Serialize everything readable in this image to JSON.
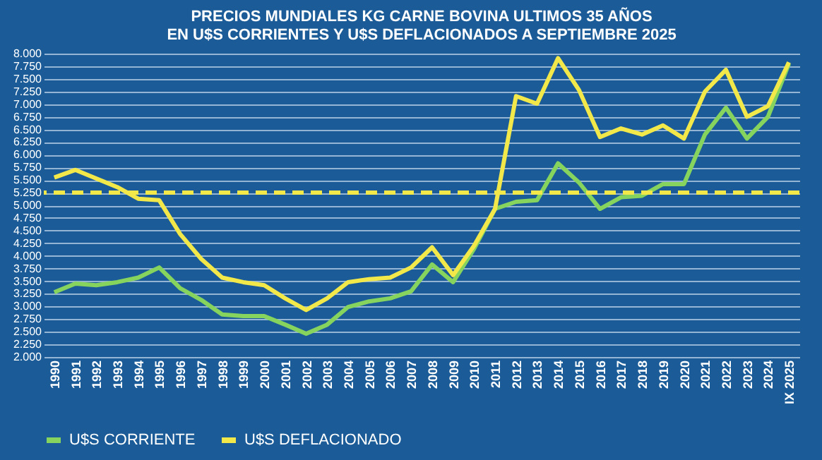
{
  "chart_data": {
    "type": "line",
    "title": [
      "PRECIOS MUNDIALES  KG CARNE BOVINA ULTIMOS 35 AÑOS",
      "EN U$S CORRIENTES Y U$S DEFLACIONADOS A SEPTIEMBRE  2025"
    ],
    "categories": [
      "1990",
      "1991",
      "1992",
      "1993",
      "1994",
      "1995",
      "1996",
      "1997",
      "1998",
      "1999",
      "2000",
      "2001",
      "2002",
      "2003",
      "2004",
      "2005",
      "2006",
      "2007",
      "2008",
      "2009",
      "2010",
      "2011",
      "2012",
      "2013",
      "2014",
      "2015",
      "2016",
      "2017",
      "2018",
      "2019",
      "2020",
      "2021",
      "2022",
      "2023",
      "2024",
      "IX 2025"
    ],
    "series": [
      {
        "name": "U$S CORRIENTE",
        "color": "#86d45e",
        "values": [
          3280,
          3450,
          3420,
          3480,
          3570,
          3770,
          3360,
          3130,
          2840,
          2810,
          2810,
          2640,
          2460,
          2640,
          2990,
          3100,
          3160,
          3300,
          3830,
          3480,
          4140,
          4930,
          5070,
          5100,
          5830,
          5450,
          4930,
          5160,
          5190,
          5420,
          5420,
          6400,
          6930,
          6320,
          6750,
          7800
        ]
      },
      {
        "name": "U$S DEFLACIONADO",
        "color": "#f2e84a",
        "values": [
          5550,
          5700,
          5530,
          5360,
          5130,
          5100,
          4430,
          3940,
          3570,
          3480,
          3420,
          3160,
          2930,
          3160,
          3480,
          3540,
          3570,
          3770,
          4170,
          3620,
          4200,
          4930,
          7160,
          7010,
          7910,
          7280,
          6350,
          6520,
          6400,
          6580,
          6320,
          7250,
          7680,
          6750,
          6960,
          7830
        ]
      }
    ],
    "ylim": [
      2000,
      8000
    ],
    "yticks": [
      {
        "value": 2000,
        "label": "2.000"
      },
      {
        "value": 2250,
        "label": "2.250"
      },
      {
        "value": 2500,
        "label": "2.500"
      },
      {
        "value": 2750,
        "label": "2.750"
      },
      {
        "value": 3000,
        "label": "3.000"
      },
      {
        "value": 3250,
        "label": "3.250"
      },
      {
        "value": 3500,
        "label": "3.500"
      },
      {
        "value": 3750,
        "label": "3.750"
      },
      {
        "value": 4000,
        "label": "4.000"
      },
      {
        "value": 4250,
        "label": "4.250"
      },
      {
        "value": 4500,
        "label": "4.500"
      },
      {
        "value": 4750,
        "label": "4.750"
      },
      {
        "value": 5000,
        "label": "5.000"
      },
      {
        "value": 5250,
        "label": "5.250"
      },
      {
        "value": 5500,
        "label": "5.500"
      },
      {
        "value": 5750,
        "label": "5.750"
      },
      {
        "value": 6000,
        "label": "6.000"
      },
      {
        "value": 6250,
        "label": "6.250"
      },
      {
        "value": 6500,
        "label": "6.500"
      },
      {
        "value": 6750,
        "label": "6.750"
      },
      {
        "value": 7000,
        "label": "7.000"
      },
      {
        "value": 7250,
        "label": "7.250"
      },
      {
        "value": 7500,
        "label": "7.500"
      },
      {
        "value": 7750,
        "label": "7.750"
      },
      {
        "value": 8000,
        "label": "8.000"
      }
    ],
    "ref_lines": [
      {
        "axis": "y",
        "value": 5250,
        "color": "#f2e84a",
        "line_style": "dashed"
      }
    ],
    "grid": "y",
    "legend": "bottom",
    "marker": "none",
    "line_style": "solid"
  }
}
